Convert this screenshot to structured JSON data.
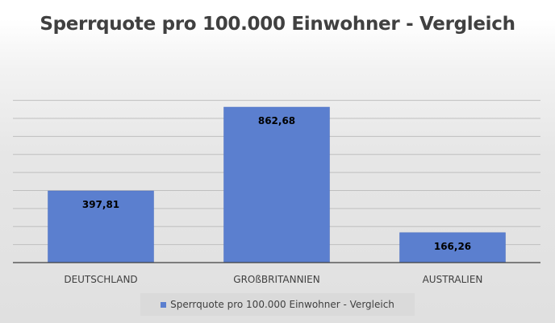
{
  "chart_data": {
    "type": "bar",
    "title": "Sperrquote pro 100.000 Einwohner - Vergleich",
    "categories": [
      "DEUTSCHLAND",
      "GROßBRITANNIEN",
      "AUSTRALIEN"
    ],
    "series": [
      {
        "name": "Sperrquote pro 100.000 Einwohner - Vergleich",
        "values": [
          397.81,
          862.68,
          166.26
        ],
        "labels": [
          "397,81",
          "862,68",
          "166,26"
        ],
        "color": "#5b7fcf"
      }
    ],
    "xlabel": "",
    "ylabel": "",
    "ylim": [
      0,
      900
    ],
    "grid": true,
    "legend": "bottom"
  },
  "colors": {
    "bar": "#5b7fcf",
    "bar_edge": "#4a6fbf",
    "gridline": "#bfbfbf",
    "axis": "#404040",
    "text": "#404040",
    "label_text": "#000000"
  }
}
